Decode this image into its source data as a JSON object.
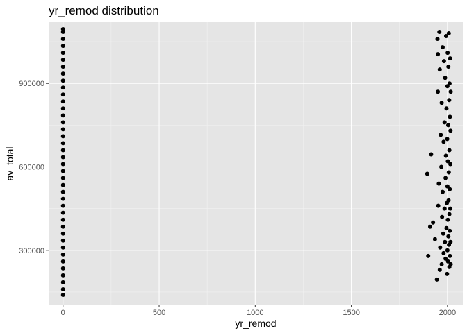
{
  "chart_data": {
    "type": "scatter",
    "title": "yr_remod  distribution",
    "xlabel": "yr_remod",
    "ylabel": "av_total",
    "xlim": [
      -75,
      2080
    ],
    "ylim": [
      105000,
      1120000
    ],
    "x_ticks": [
      0,
      500,
      1000,
      1500,
      2000
    ],
    "x_tick_labels": [
      "0",
      "500",
      "1000",
      "1500",
      "2000"
    ],
    "y_ticks": [
      300000,
      600000,
      900000
    ],
    "y_tick_labels": [
      "300000",
      "600000",
      "900000"
    ],
    "grid": true,
    "colors": {
      "panel": "#e5e5e5",
      "grid_major": "#ffffff",
      "point": "#000000",
      "tick": "#4d4d4d"
    },
    "series": [
      {
        "points": [
          [
            0,
            140000
          ],
          [
            0,
            160000
          ],
          [
            0,
            185000
          ],
          [
            0,
            210000
          ],
          [
            0,
            235000
          ],
          [
            0,
            260000
          ],
          [
            0,
            285000
          ],
          [
            0,
            310000
          ],
          [
            0,
            335000
          ],
          [
            0,
            360000
          ],
          [
            0,
            385000
          ],
          [
            0,
            410000
          ],
          [
            0,
            435000
          ],
          [
            0,
            460000
          ],
          [
            0,
            485000
          ],
          [
            0,
            510000
          ],
          [
            0,
            535000
          ],
          [
            0,
            560000
          ],
          [
            0,
            585000
          ],
          [
            0,
            610000
          ],
          [
            0,
            635000
          ],
          [
            0,
            660000
          ],
          [
            0,
            685000
          ],
          [
            0,
            710000
          ],
          [
            0,
            735000
          ],
          [
            0,
            760000
          ],
          [
            0,
            785000
          ],
          [
            0,
            810000
          ],
          [
            0,
            835000
          ],
          [
            0,
            860000
          ],
          [
            0,
            885000
          ],
          [
            0,
            910000
          ],
          [
            0,
            935000
          ],
          [
            0,
            960000
          ],
          [
            0,
            985000
          ],
          [
            0,
            1010000
          ],
          [
            0,
            1035000
          ],
          [
            0,
            1060000
          ],
          [
            0,
            1085000
          ],
          [
            0,
            1095000
          ],
          [
            1895,
            575000
          ],
          [
            1900,
            280000
          ],
          [
            1910,
            385000
          ],
          [
            1915,
            645000
          ],
          [
            1925,
            400000
          ],
          [
            1935,
            340000
          ],
          [
            1945,
            195000
          ],
          [
            1948,
            1060000
          ],
          [
            1950,
            1005000
          ],
          [
            1950,
            870000
          ],
          [
            1952,
            460000
          ],
          [
            1955,
            540000
          ],
          [
            1958,
            1085000
          ],
          [
            1960,
            230000
          ],
          [
            1960,
            950000
          ],
          [
            1962,
            310000
          ],
          [
            1965,
            715000
          ],
          [
            1968,
            600000
          ],
          [
            1970,
            250000
          ],
          [
            1970,
            830000
          ],
          [
            1972,
            420000
          ],
          [
            1975,
            510000
          ],
          [
            1975,
            1030000
          ],
          [
            1978,
            360000
          ],
          [
            1980,
            290000
          ],
          [
            1980,
            690000
          ],
          [
            1982,
            980000
          ],
          [
            1985,
            450000
          ],
          [
            1985,
            760000
          ],
          [
            1987,
            330000
          ],
          [
            1988,
            920000
          ],
          [
            1990,
            270000
          ],
          [
            1990,
            560000
          ],
          [
            1992,
            640000
          ],
          [
            1993,
            1070000
          ],
          [
            1995,
            380000
          ],
          [
            1995,
            810000
          ],
          [
            1997,
            470000
          ],
          [
            1998,
            215000
          ],
          [
            1999,
            700000
          ],
          [
            2000,
            300000
          ],
          [
            2000,
            530000
          ],
          [
            2000,
            890000
          ],
          [
            2001,
            1010000
          ],
          [
            2002,
            410000
          ],
          [
            2002,
            620000
          ],
          [
            2003,
            260000
          ],
          [
            2004,
            750000
          ],
          [
            2005,
            350000
          ],
          [
            2005,
            960000
          ],
          [
            2006,
            480000
          ],
          [
            2007,
            580000
          ],
          [
            2007,
            1080000
          ],
          [
            2008,
            320000
          ],
          [
            2009,
            840000
          ],
          [
            2010,
            240000
          ],
          [
            2010,
            430000
          ],
          [
            2010,
            660000
          ],
          [
            2011,
            900000
          ],
          [
            2012,
            370000
          ],
          [
            2012,
            520000
          ],
          [
            2013,
            280000
          ],
          [
            2013,
            780000
          ],
          [
            2014,
            990000
          ],
          [
            2015,
            450000
          ],
          [
            2015,
            610000
          ],
          [
            2016,
            330000
          ],
          [
            2016,
            730000
          ],
          [
            2017,
            250000
          ],
          [
            2017,
            870000
          ]
        ]
      }
    ]
  }
}
